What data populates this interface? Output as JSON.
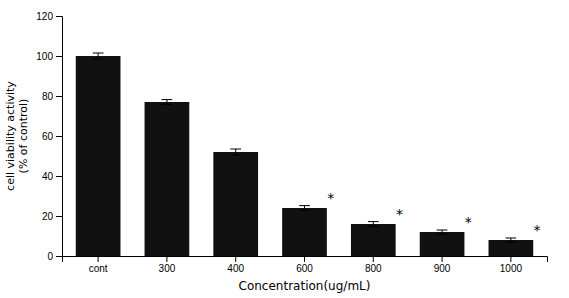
{
  "chart_data": {
    "type": "bar",
    "categories": [
      "cont",
      "300",
      "400",
      "600",
      "800",
      "900",
      "1000"
    ],
    "values": [
      100,
      77,
      52,
      24,
      16,
      12,
      8
    ],
    "errors": [
      1.5,
      1.2,
      1.5,
      1.2,
      1.2,
      1.0,
      1.0
    ],
    "color": "#111111",
    "xlabel": "Concentration(ug/mL)",
    "ylabel": "cell viability activity\n(% of control)",
    "ylim": [
      0,
      120
    ],
    "yticks": [
      0,
      20,
      40,
      60,
      80,
      100,
      120
    ],
    "grid": false,
    "annotations": [
      {
        "text": "*",
        "category": "600"
      },
      {
        "text": "*",
        "category": "800"
      },
      {
        "text": "*",
        "category": "900"
      },
      {
        "text": "*",
        "category": "1000"
      }
    ]
  }
}
